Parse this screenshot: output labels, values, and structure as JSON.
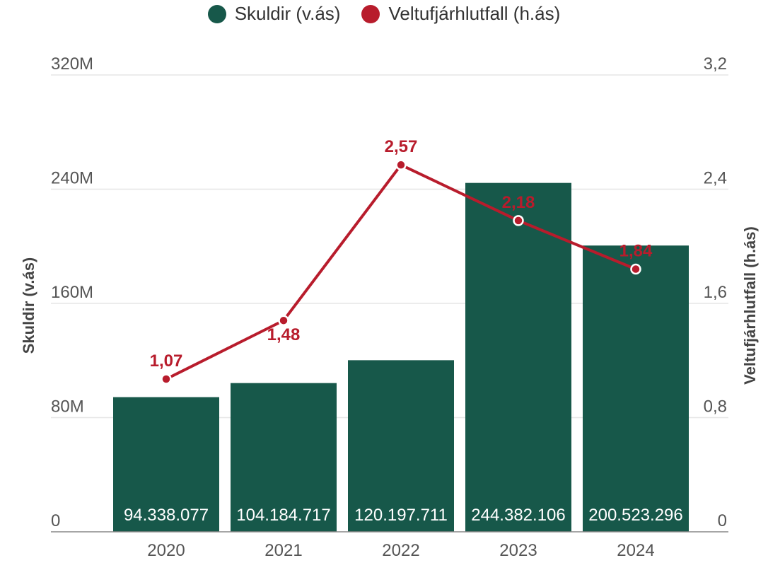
{
  "chart_data": {
    "type": "bar",
    "categories": [
      "2020",
      "2021",
      "2022",
      "2023",
      "2024"
    ],
    "series": [
      {
        "name": "Skuldir (v.ás)",
        "type": "bar",
        "axis": "left",
        "color": "#17584a",
        "values": [
          94338077,
          104184717,
          120197711,
          244382106,
          200523296
        ],
        "labels": [
          "94.338.077",
          "104.184.717",
          "120.197.711",
          "244.382.106",
          "200.523.296"
        ]
      },
      {
        "name": "Veltufjárhlutfall (h.ás)",
        "type": "line",
        "axis": "right",
        "color": "#b81c2c",
        "values": [
          1.07,
          1.48,
          2.57,
          2.18,
          1.84
        ],
        "labels": [
          "1,07",
          "1,48",
          "2,57",
          "2,18",
          "1,84"
        ]
      }
    ],
    "ylabel_left": "Skuldir (v.ás)",
    "ylabel_right": "Veltufjárhlutfall (h.ás)",
    "ylim_left": [
      0,
      320000000
    ],
    "ylim_right": [
      0,
      3.2
    ],
    "yticks_left": [
      "0",
      "80M",
      "160M",
      "240M",
      "320M"
    ],
    "yticks_right": [
      "0",
      "0,8",
      "1,6",
      "2,4",
      "3,2"
    ],
    "grid": true,
    "legend_position": "top-center"
  }
}
